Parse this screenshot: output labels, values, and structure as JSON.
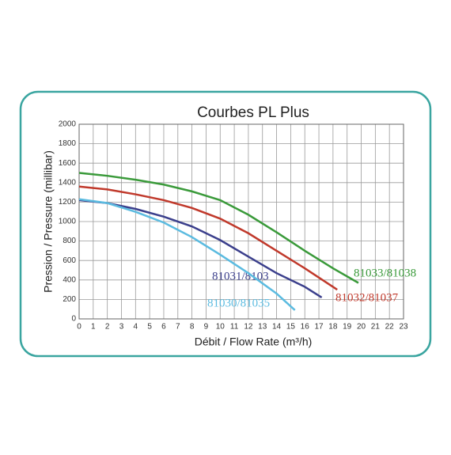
{
  "chart_data": {
    "type": "line",
    "title": "Courbes PL Plus",
    "x_label": "Débit / Flow Rate (m³/h)",
    "y_label": "Pression / Pressure (millibar)",
    "xlim": [
      0,
      23
    ],
    "xticks": [
      0,
      1,
      2,
      3,
      4,
      5,
      6,
      7,
      8,
      9,
      10,
      11,
      12,
      13,
      14,
      15,
      16,
      17,
      18,
      19,
      20,
      21,
      22,
      23
    ],
    "ylim": [
      0,
      2000
    ],
    "yticks": [
      0,
      200,
      400,
      600,
      800,
      1000,
      1200,
      1400,
      1600,
      1800,
      2000
    ],
    "grid": true,
    "series": [
      {
        "name": "81033/81038",
        "color": "#3a9a3a",
        "x": [
          0,
          2,
          4,
          6,
          8,
          10,
          12,
          14,
          16,
          18,
          19.8
        ],
        "values": [
          1500,
          1470,
          1430,
          1380,
          1310,
          1220,
          1070,
          890,
          700,
          520,
          370
        ]
      },
      {
        "name": "81032/81037",
        "color": "#c0392b",
        "x": [
          0,
          2,
          4,
          6,
          8,
          10,
          12,
          14,
          16,
          18.3
        ],
        "values": [
          1360,
          1330,
          1280,
          1220,
          1140,
          1030,
          880,
          700,
          520,
          300
        ]
      },
      {
        "name": "81031/8103",
        "color": "#3b3f8c",
        "x": [
          0,
          2,
          4,
          6,
          8,
          10,
          12,
          14,
          16,
          17.2
        ],
        "values": [
          1220,
          1190,
          1130,
          1050,
          950,
          810,
          640,
          470,
          330,
          220
        ]
      },
      {
        "name": "81030/81035",
        "color": "#5bbbe0",
        "x": [
          0,
          2,
          4,
          6,
          8,
          10,
          12,
          14,
          15.3
        ],
        "values": [
          1230,
          1190,
          1100,
          990,
          840,
          660,
          470,
          260,
          90
        ]
      }
    ]
  }
}
